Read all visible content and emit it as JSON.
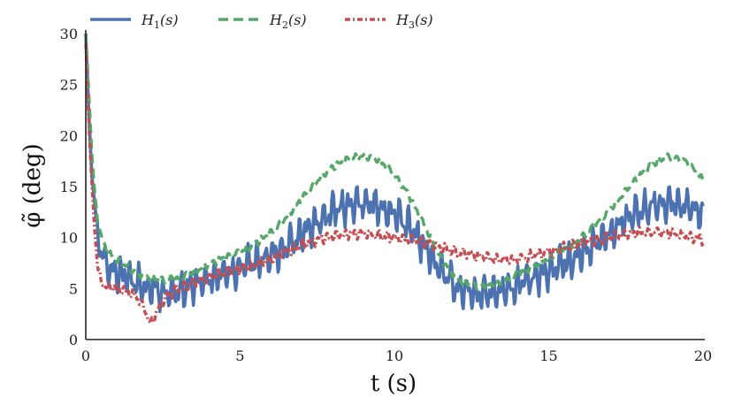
{
  "chart_data": {
    "type": "line",
    "title": "",
    "xlabel": "t (s)",
    "ylabel": "φ̃ (deg)",
    "xlim": [
      0,
      20
    ],
    "ylim": [
      0,
      30
    ],
    "xticks": [
      0,
      5,
      10,
      15,
      20
    ],
    "yticks": [
      0,
      5,
      10,
      15,
      20,
      25,
      30
    ],
    "grid": false,
    "legend_position": "top-left",
    "series": [
      {
        "name": "H1(s)",
        "label_main": "H",
        "label_sub": "1",
        "label_arg": "(s)",
        "color": "#4c72b0",
        "style": "solid",
        "x": [
          0,
          0.1,
          0.2,
          0.3,
          0.4,
          0.5,
          0.7,
          1.0,
          1.3,
          1.6,
          1.9,
          2.2,
          2.5,
          3.0,
          3.5,
          4.0,
          4.5,
          5.0,
          5.5,
          6.0,
          6.5,
          7.0,
          7.5,
          8.0,
          8.5,
          9.0,
          9.5,
          10.0,
          10.5,
          11.0,
          11.5,
          12.0,
          12.5,
          13.0,
          13.5,
          14.0,
          14.5,
          15.0,
          15.5,
          16.0,
          16.5,
          17.0,
          17.5,
          18.0,
          18.5,
          19.0,
          19.5,
          20.0
        ],
        "y": [
          30,
          22,
          16,
          13,
          10,
          8.5,
          7.2,
          6.6,
          6.2,
          5.8,
          5.2,
          4.8,
          4.5,
          4.8,
          5.3,
          5.9,
          6.5,
          7.0,
          7.6,
          8.2,
          9.0,
          10.2,
          11.5,
          12.6,
          13.2,
          13.4,
          13.0,
          12.4,
          11.0,
          9.0,
          6.8,
          5.2,
          4.6,
          4.5,
          4.8,
          5.4,
          6.1,
          6.8,
          7.5,
          8.3,
          9.3,
          10.5,
          11.8,
          12.7,
          13.2,
          13.5,
          13.1,
          12.3
        ],
        "noise_amplitude": 1.5
      },
      {
        "name": "H2(s)",
        "label_main": "H",
        "label_sub": "2",
        "label_arg": "(s)",
        "color": "#55a868",
        "style": "dashed",
        "x": [
          0,
          0.1,
          0.2,
          0.3,
          0.4,
          0.5,
          0.7,
          1.0,
          1.3,
          1.6,
          1.9,
          2.2,
          2.5,
          3.0,
          3.5,
          4.0,
          4.5,
          5.0,
          5.5,
          6.0,
          6.5,
          7.0,
          7.5,
          8.0,
          8.5,
          9.0,
          9.5,
          10.0,
          10.5,
          11.0,
          11.5,
          12.0,
          12.5,
          13.0,
          13.5,
          14.0,
          14.5,
          15.0,
          15.5,
          16.0,
          16.5,
          17.0,
          17.5,
          18.0,
          18.5,
          19.0,
          19.5,
          20.0
        ],
        "y": [
          30,
          24,
          18,
          14,
          11.5,
          10,
          8.6,
          7.8,
          7.2,
          6.6,
          6.2,
          6.0,
          5.8,
          6.0,
          6.6,
          7.4,
          8.0,
          8.6,
          9.4,
          10.5,
          12.0,
          13.8,
          15.6,
          16.9,
          17.7,
          18.0,
          17.6,
          16.2,
          14.0,
          11.0,
          8.0,
          6.0,
          5.3,
          5.2,
          5.6,
          6.4,
          7.2,
          8.0,
          8.8,
          9.8,
          11.2,
          12.8,
          14.6,
          16.3,
          17.5,
          18.0,
          17.4,
          15.6
        ],
        "noise_amplitude": 0.3
      },
      {
        "name": "H3(s)",
        "label_main": "H",
        "label_sub": "3",
        "label_arg": "(s)",
        "color": "#c44e52",
        "style": "dash-dot",
        "x": [
          0,
          0.1,
          0.2,
          0.3,
          0.4,
          0.5,
          0.7,
          1.0,
          1.3,
          1.6,
          1.9,
          2.1,
          2.3,
          2.6,
          3.0,
          3.5,
          4.0,
          4.5,
          5.0,
          5.5,
          6.0,
          6.5,
          7.0,
          7.5,
          8.0,
          8.5,
          9.0,
          9.5,
          10.0,
          10.5,
          11.0,
          11.5,
          12.0,
          12.5,
          13.0,
          13.5,
          14.0,
          14.5,
          15.0,
          15.5,
          16.0,
          16.5,
          17.0,
          17.5,
          18.0,
          18.5,
          19.0,
          19.5,
          20.0
        ],
        "y": [
          29,
          21,
          15,
          10,
          7,
          5.5,
          5.2,
          5.0,
          4.8,
          4.3,
          3.0,
          1.5,
          2.8,
          4.2,
          5.0,
          5.6,
          6.1,
          6.6,
          7.0,
          7.4,
          7.9,
          8.6,
          9.3,
          9.8,
          10.1,
          10.3,
          10.4,
          10.2,
          10.0,
          9.8,
          9.5,
          9.0,
          8.6,
          8.3,
          8.0,
          7.8,
          7.9,
          8.2,
          8.6,
          9.0,
          9.4,
          9.7,
          10.0,
          10.3,
          10.5,
          10.6,
          10.4,
          10.1,
          9.8
        ],
        "noise_amplitude": 0.45
      }
    ]
  }
}
